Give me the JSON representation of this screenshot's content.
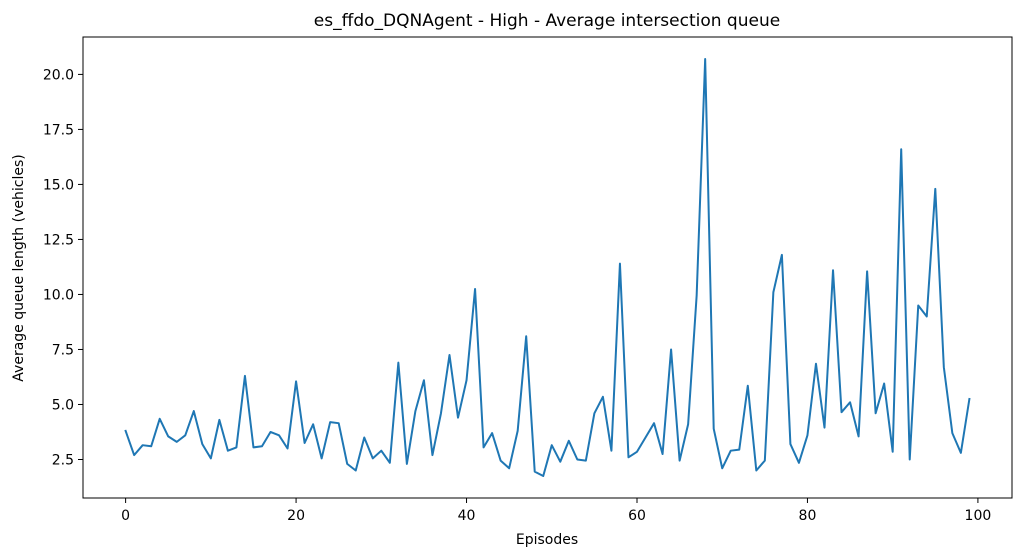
{
  "chart_data": {
    "type": "line",
    "title": "es_ffdo_DQNAgent - High - Average intersection queue",
    "xlabel": "Episodes",
    "ylabel": "Average queue length (vehicles)",
    "xlim": [
      -5,
      104
    ],
    "ylim": [
      0.75,
      21.7
    ],
    "xticks": [
      0,
      20,
      40,
      60,
      80,
      100
    ],
    "yticks": [
      2.5,
      5.0,
      7.5,
      10.0,
      12.5,
      15.0,
      17.5,
      20.0
    ],
    "ytick_labels": [
      "2.5",
      "5.0",
      "7.5",
      "10.0",
      "12.5",
      "15.0",
      "17.5",
      "20.0"
    ],
    "grid": false,
    "line_color": "#1f77b4",
    "series": [
      {
        "x": [
          0,
          1,
          2,
          3,
          4,
          5,
          6,
          7,
          8,
          9,
          10,
          11,
          12,
          13,
          14,
          15,
          16,
          17,
          18,
          19,
          20,
          21,
          22,
          23,
          24,
          25,
          26,
          27,
          28,
          29,
          30,
          31,
          32,
          33,
          34,
          35,
          36,
          37,
          38,
          39,
          40,
          41,
          42,
          43,
          44,
          45,
          46,
          47,
          48,
          49,
          50,
          51,
          52,
          53,
          54,
          55,
          56,
          57,
          58,
          59,
          60,
          61,
          62,
          63,
          64,
          65,
          66,
          67,
          68,
          69,
          70,
          71,
          72,
          73,
          74,
          75,
          76,
          77,
          78,
          79,
          80,
          81,
          82,
          83,
          84,
          85,
          86,
          87,
          88,
          89,
          90,
          91,
          92,
          93,
          94,
          95,
          96,
          97,
          98,
          99
        ],
        "values": [
          3.8,
          2.7,
          3.15,
          3.1,
          4.35,
          3.55,
          3.3,
          3.6,
          4.7,
          3.2,
          2.55,
          4.3,
          2.9,
          3.05,
          6.3,
          3.05,
          3.1,
          3.75,
          3.6,
          3.0,
          6.05,
          3.25,
          4.1,
          2.55,
          4.2,
          4.15,
          2.3,
          2.0,
          3.5,
          2.55,
          2.9,
          2.35,
          6.9,
          2.3,
          4.7,
          6.1,
          2.7,
          4.6,
          7.25,
          4.4,
          6.1,
          10.25,
          3.05,
          3.7,
          2.45,
          2.1,
          3.8,
          8.1,
          1.95,
          1.75,
          3.15,
          2.4,
          3.35,
          2.5,
          2.45,
          4.6,
          5.35,
          2.9,
          11.4,
          2.6,
          2.85,
          3.5,
          4.15,
          2.75,
          7.5,
          2.45,
          4.1,
          9.95,
          20.7,
          3.9,
          2.1,
          2.9,
          2.95,
          5.85,
          2.0,
          2.45,
          10.1,
          11.8,
          3.2,
          2.35,
          3.6,
          6.85,
          3.95,
          11.1,
          4.65,
          5.1,
          3.55,
          11.05,
          4.6,
          5.95,
          2.85,
          16.6,
          2.5,
          9.5,
          9.0,
          14.8,
          6.7,
          3.7,
          2.8,
          5.25
        ]
      }
    ]
  }
}
